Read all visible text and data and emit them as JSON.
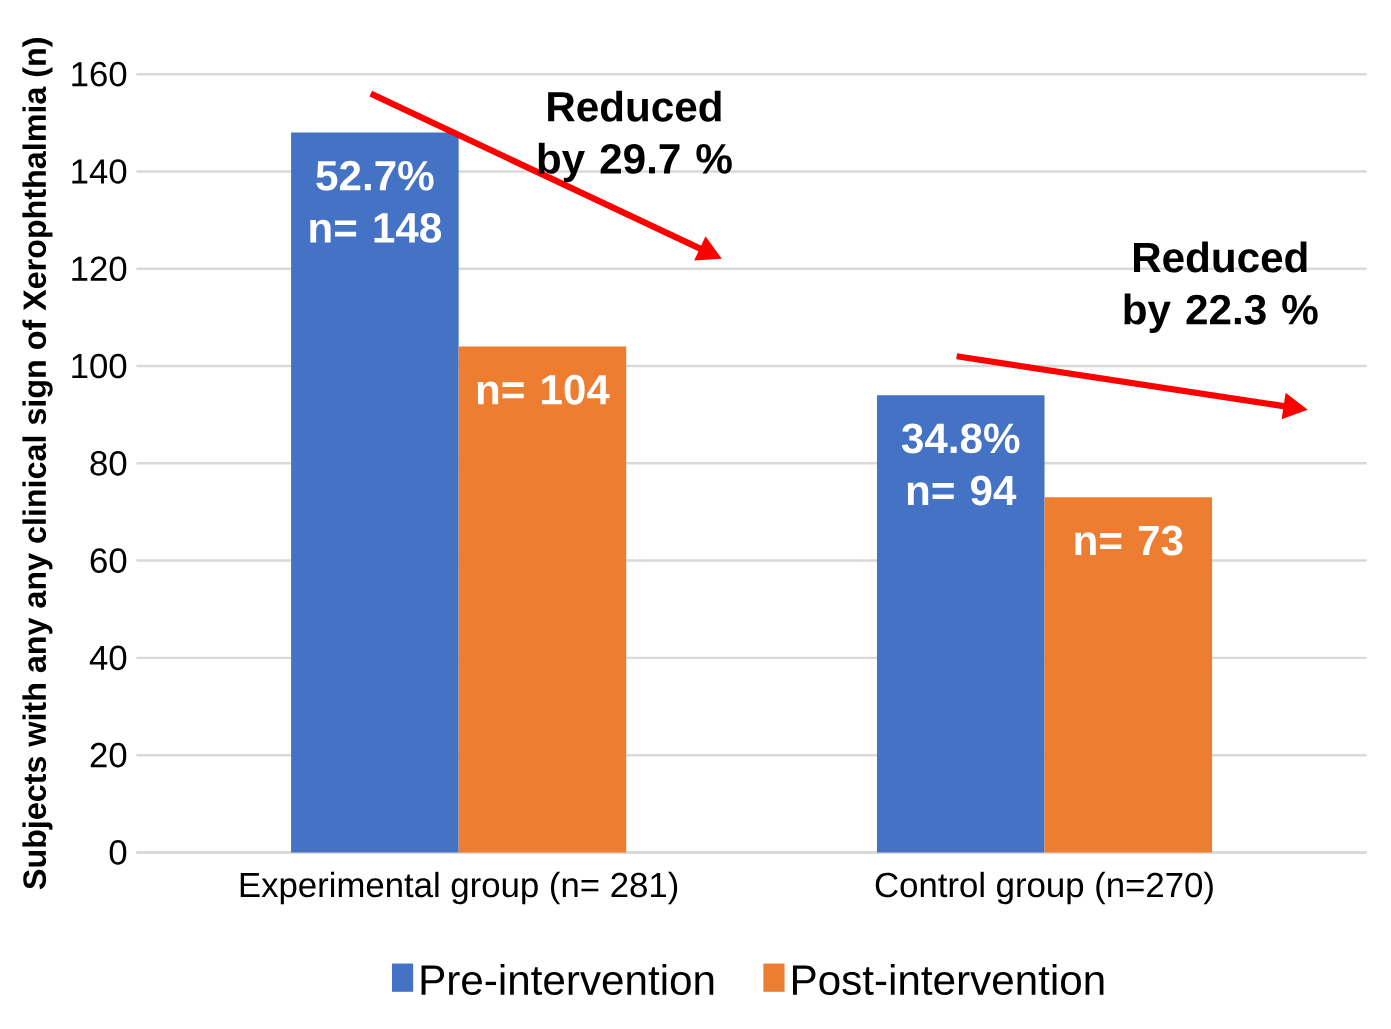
{
  "chart_data": {
    "type": "bar",
    "ylabel": "Subjects with any any clinical sign of Xerophthalmia (n)",
    "categories": [
      "Experimental group (n= 281)",
      "Control group (n=270)"
    ],
    "series": [
      {
        "name": "Pre-intervention",
        "color": "#4472c4",
        "values": [
          148,
          94
        ],
        "value_labels": [
          "52.7% n= 148",
          "34.8% n= 94"
        ]
      },
      {
        "name": "Post-intervention",
        "color": "#ed7d31",
        "values": [
          104,
          73
        ],
        "value_labels": [
          "n= 104",
          "n= 73"
        ]
      }
    ],
    "annotations": [
      "Reduced by 29.7 %",
      "Reduced by 22.3 %"
    ],
    "ylim": [
      0,
      160
    ],
    "yticks": [
      0,
      20,
      40,
      60,
      80,
      100,
      120,
      140,
      160
    ],
    "grid": "y",
    "legend": "bottom"
  }
}
